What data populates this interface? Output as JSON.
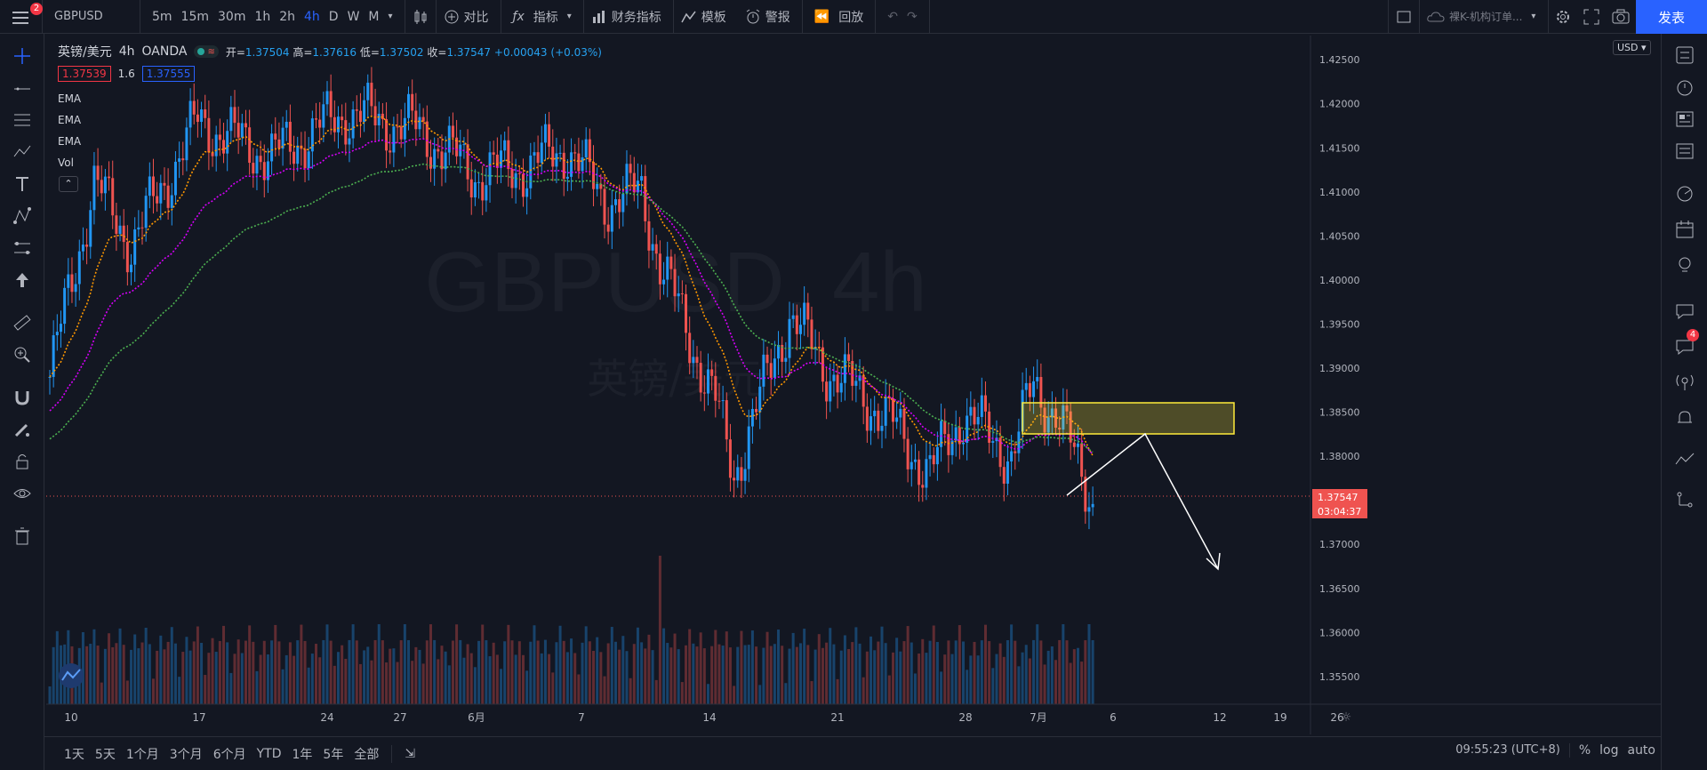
{
  "topbar": {
    "notification_count": "2",
    "symbol": "GBPUSD",
    "intervals": [
      "5m",
      "15m",
      "30m",
      "1h",
      "2h",
      "4h",
      "D",
      "W",
      "M"
    ],
    "active_interval": "4h",
    "compare_label": "对比",
    "indicators_label": "指标",
    "financials_label": "财务指标",
    "templates_label": "模板",
    "alert_label": "警报",
    "replay_label": "回放",
    "layout_name": "裸K-机构订单...",
    "publish_label": "发表"
  },
  "legend": {
    "symbol_name": "英镑/美元",
    "interval": "4h",
    "exchange": "OANDA",
    "open_label": "开=",
    "open": "1.37504",
    "high_label": "高=",
    "high": "1.37616",
    "low_label": "低=",
    "low": "1.37502",
    "close_label": "收=",
    "close": "1.37547",
    "change": "+0.00043 (+0.03%)",
    "bid": "1.37539",
    "spread": "1.6",
    "ask": "1.37555",
    "indicators": [
      "EMA",
      "EMA",
      "EMA",
      "Vol"
    ]
  },
  "watermark": {
    "line1": "GBPUSD, 4h",
    "line2": "英镑/美元"
  },
  "price_axis": {
    "currency": "USD",
    "labels": [
      "1.42500",
      "1.42000",
      "1.41500",
      "1.41000",
      "1.40500",
      "1.40000",
      "1.39500",
      "1.39000",
      "1.38500",
      "1.38000",
      "1.37500",
      "1.37000",
      "1.36500",
      "1.36000",
      "1.35500"
    ],
    "last_price": "1.37547",
    "countdown": "03:04:37"
  },
  "time_axis": {
    "labels": [
      "10",
      "17",
      "24",
      "27",
      "6月",
      "7",
      "14",
      "21",
      "28",
      "7月",
      "6",
      "12",
      "19",
      "26"
    ]
  },
  "bottombar": {
    "ranges": [
      "1天",
      "5天",
      "1个月",
      "3个月",
      "6个月",
      "YTD",
      "1年",
      "5年",
      "全部"
    ],
    "time": "09:55:23 (UTC+8)",
    "percent": "%",
    "log": "log",
    "auto": "auto"
  },
  "right_badge": "4",
  "colors": {
    "up": "#2196f3",
    "down": "#ef5350",
    "ema_fast": "#ff9800",
    "ema_mid": "#d500f9",
    "ema_slow": "#4caf50",
    "zone": "#ffeb3b"
  }
}
